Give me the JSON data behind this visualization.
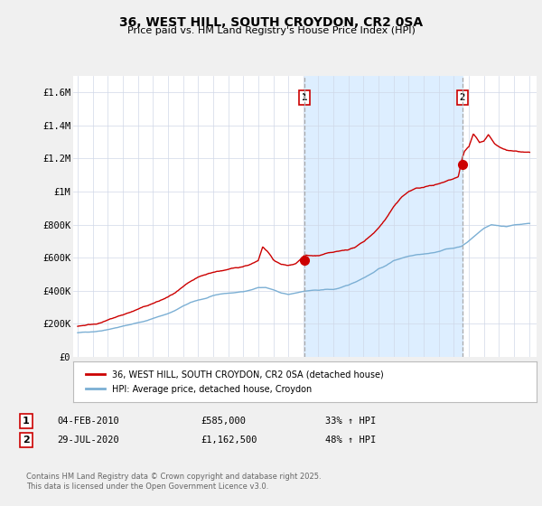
{
  "title": "36, WEST HILL, SOUTH CROYDON, CR2 0SA",
  "subtitle": "Price paid vs. HM Land Registry's House Price Index (HPI)",
  "background_color": "#f0f0f0",
  "plot_bg_color": "#ffffff",
  "red_line_color": "#cc0000",
  "blue_line_color": "#7bafd4",
  "shade_color": "#ddeeff",
  "vline_color": "#aaaaaa",
  "ylim": [
    0,
    1700000
  ],
  "yticks": [
    0,
    200000,
    400000,
    600000,
    800000,
    1000000,
    1200000,
    1400000,
    1600000
  ],
  "ytick_labels": [
    "£0",
    "£200K",
    "£400K",
    "£600K",
    "£800K",
    "£1M",
    "£1.2M",
    "£1.4M",
    "£1.6M"
  ],
  "xlim_start": 1994.7,
  "xlim_end": 2025.5,
  "xticks": [
    1995,
    1996,
    1997,
    1998,
    1999,
    2000,
    2001,
    2002,
    2003,
    2004,
    2005,
    2006,
    2007,
    2008,
    2009,
    2010,
    2011,
    2012,
    2013,
    2014,
    2015,
    2016,
    2017,
    2018,
    2019,
    2020,
    2021,
    2022,
    2023,
    2024,
    2025
  ],
  "legend_label_red": "36, WEST HILL, SOUTH CROYDON, CR2 0SA (detached house)",
  "legend_label_blue": "HPI: Average price, detached house, Croydon",
  "purchase1_date": 2010.09,
  "purchase1_label": "1",
  "purchase1_price": 585000,
  "purchase1_hpi_pct": "33% ↑ HPI",
  "purchase1_display": "04-FEB-2010",
  "purchase1_amount": "£585,000",
  "purchase2_date": 2020.57,
  "purchase2_label": "2",
  "purchase2_price": 1162500,
  "purchase2_hpi_pct": "48% ↑ HPI",
  "purchase2_display": "29-JUL-2020",
  "purchase2_amount": "£1,162,500",
  "footer_text": "Contains HM Land Registry data © Crown copyright and database right 2025.\nThis data is licensed under the Open Government Licence v3.0."
}
